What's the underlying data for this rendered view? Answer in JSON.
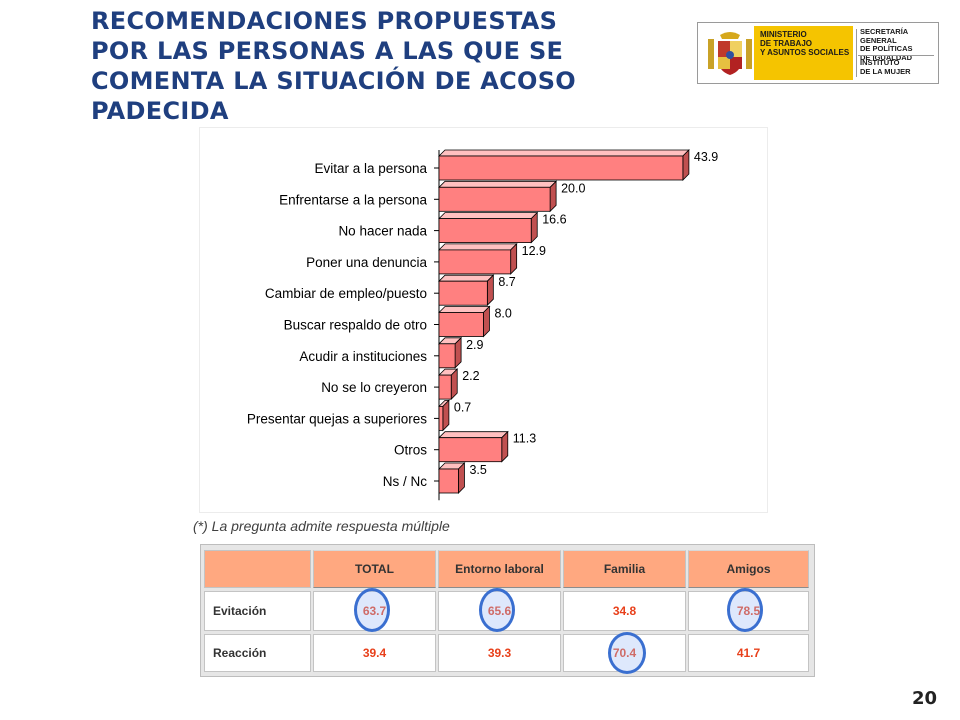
{
  "title_lines": [
    "RECOMENDACIONES PROPUESTAS",
    "POR LAS PERSONAS A LAS QUE SE",
    "COMENTA LA SITUACIÓN DE ACOSO",
    "PADECIDA"
  ],
  "logo": {
    "ministry_lines": [
      "MINISTERIO",
      "DE TRABAJO",
      "Y ASUNTOS SOCIALES"
    ],
    "secretaria_lines": [
      "SECRETARÍA GENERAL",
      "DE POLÍTICAS",
      "DE IGUALDAD"
    ],
    "instituto_lines": [
      "INSTITUTO",
      "DE LA MUJER"
    ],
    "accent_color": "#f5c400"
  },
  "chart_data": {
    "type": "bar",
    "orientation": "horizontal",
    "style": "3d",
    "categories": [
      "Evitar a la persona",
      "Enfrentarse a la persona",
      "No hacer nada",
      "Poner una denuncia",
      "Cambiar de empleo/puesto",
      "Buscar respaldo de otro",
      "Acudir a instituciones",
      "No se lo creyeron",
      "Presentar quejas a superiores",
      "Otros",
      "Ns / Nc"
    ],
    "values": [
      43.9,
      20.0,
      16.6,
      12.9,
      8.7,
      8.0,
      2.9,
      2.2,
      0.7,
      11.3,
      3.5
    ],
    "value_labels": [
      "43.9",
      "20.0",
      "16.6",
      "12.9",
      "8.7",
      "8.0",
      "2.9",
      "2.2",
      "0.7",
      "11.3",
      "3.5"
    ],
    "xlim": [
      0,
      45
    ],
    "bar_color": "#ff8080",
    "bar_top_color": "#ffc0c0",
    "bar_side_color": "#c05050"
  },
  "note": "(*) La pregunta admite respuesta múltiple",
  "table": {
    "headers": [
      "TOTAL",
      "Entorno laboral",
      "Familia",
      "Amigos"
    ],
    "rows": [
      {
        "label": "Evitación",
        "values": [
          "63.7",
          "65.6",
          "34.8",
          "78.5"
        ],
        "circled": [
          true,
          true,
          false,
          true
        ]
      },
      {
        "label": "Reacción",
        "values": [
          "39.4",
          "39.3",
          "70.4",
          "41.7"
        ],
        "circled": [
          false,
          false,
          true,
          false
        ]
      }
    ],
    "header_color": "#ffa880",
    "value_color": "#e8401b",
    "circle_color": "#3a6fd0"
  },
  "page_number": "20"
}
